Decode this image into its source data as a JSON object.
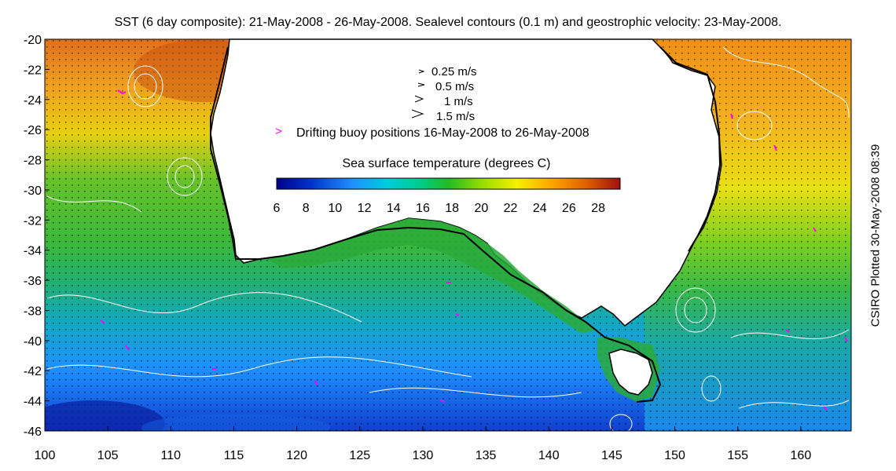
{
  "title": "SST (6 day composite): 21-May-2008 - 26-May-2008. Sealevel contours (0.1 m) and geostrophic velocity: 23-May-2008.",
  "credit": "CSIRO Plotted 30-May-2008 08:39",
  "axes": {
    "lon_ticks": [
      "100",
      "105",
      "110",
      "115",
      "120",
      "125",
      "130",
      "135",
      "140",
      "145",
      "150",
      "155",
      "160"
    ],
    "lat_ticks": [
      "-20",
      "-22",
      "-24",
      "-26",
      "-28",
      "-30",
      "-32",
      "-34",
      "-36",
      "-38",
      "-40",
      "-42",
      "-44",
      "-46"
    ],
    "lon_range": [
      100,
      164
    ],
    "lat_range": [
      -46,
      -20
    ]
  },
  "legend": {
    "velocity_scale": [
      {
        "label": "0.25 m/s",
        "value": 0.25
      },
      {
        "label": "0.5 m/s",
        "value": 0.5
      },
      {
        "label": "1 m/s",
        "value": 1
      },
      {
        "label": "1.5 m/s",
        "value": 1.5
      }
    ],
    "buoy_symbol": ">",
    "buoy_label": "Drifting buoy positions 16-May-2008 to 26-May-2008",
    "colorbar_title": "Sea surface temperature (degrees C)",
    "colorbar_ticks": [
      "6",
      "8",
      "10",
      "12",
      "14",
      "16",
      "18",
      "20",
      "22",
      "24",
      "26",
      "28"
    ],
    "colorbar_range": [
      6,
      29.5
    ]
  },
  "colors": {
    "land": "#ffffff",
    "coastline": "#000000",
    "contour": "#ffffff",
    "buoy": "#ff00ff",
    "shelf_line": "#000000"
  }
}
